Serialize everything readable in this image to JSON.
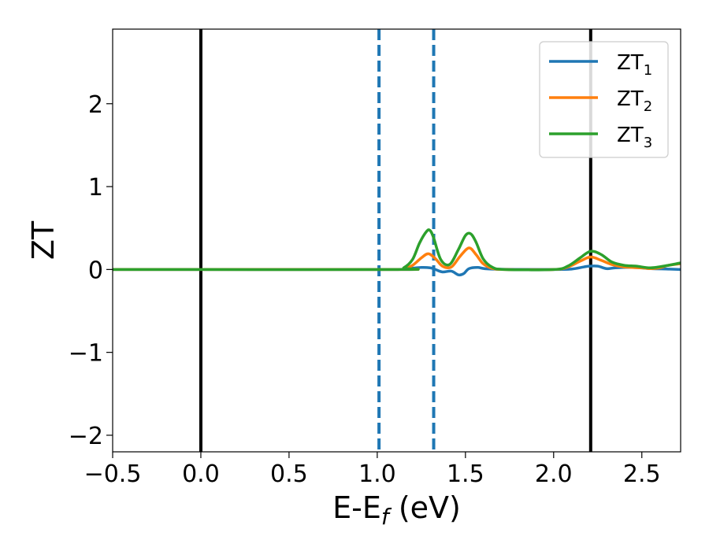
{
  "chart_data": {
    "type": "line",
    "xlabel": {
      "main": "E-E",
      "sub": "f",
      "unit": " (eV)"
    },
    "ylabel": "ZT",
    "xlim": [
      -0.5,
      2.72
    ],
    "ylim": [
      -2.2,
      2.9
    ],
    "xticks": [
      -0.5,
      0.0,
      0.5,
      1.0,
      1.5,
      2.0,
      2.5
    ],
    "xtick_labels": [
      "−0.5",
      "0.0",
      "0.5",
      "1.0",
      "1.5",
      "2.0",
      "2.5"
    ],
    "yticks": [
      -2,
      -1,
      0,
      1,
      2
    ],
    "ytick_labels": [
      "−2",
      "−1",
      "0",
      "1",
      "2"
    ],
    "grid": false,
    "legend_position": "top-right",
    "vlines": [
      {
        "x": 0.0,
        "style": "solid",
        "color": "#000000"
      },
      {
        "x": 2.21,
        "style": "solid",
        "color": "#000000"
      },
      {
        "x": 1.01,
        "style": "dashed",
        "color": "#1f77b4"
      },
      {
        "x": 1.32,
        "style": "dashed",
        "color": "#1f77b4"
      }
    ],
    "series": [
      {
        "name_main": "ZT",
        "name_sub": "1",
        "color": "#1f77b4",
        "x": [
          -0.5,
          1.1,
          1.15,
          1.2,
          1.25,
          1.3,
          1.33,
          1.37,
          1.42,
          1.46,
          1.49,
          1.52,
          1.57,
          1.65,
          2.0,
          2.1,
          2.17,
          2.2,
          2.25,
          2.3,
          2.35,
          2.45,
          2.55,
          2.65,
          2.72
        ],
        "y": [
          0.0,
          0.0,
          0.005,
          0.015,
          0.025,
          0.02,
          0.0,
          -0.03,
          -0.02,
          -0.065,
          -0.05,
          0.01,
          0.025,
          0.005,
          0.0,
          0.005,
          0.03,
          0.04,
          0.04,
          0.01,
          0.02,
          0.025,
          0.01,
          0.005,
          0.0
        ]
      },
      {
        "name_main": "ZT",
        "name_sub": "2",
        "color": "#ff7f0e",
        "x": [
          -0.5,
          1.1,
          1.15,
          1.2,
          1.25,
          1.29,
          1.33,
          1.37,
          1.42,
          1.47,
          1.52,
          1.56,
          1.6,
          1.65,
          1.72,
          2.0,
          2.08,
          2.15,
          2.21,
          2.27,
          2.33,
          2.4,
          2.5,
          2.55,
          2.6,
          2.65,
          2.72
        ],
        "y": [
          0.0,
          0.0,
          0.01,
          0.05,
          0.14,
          0.19,
          0.13,
          0.04,
          0.03,
          0.16,
          0.26,
          0.18,
          0.07,
          0.015,
          0.0,
          0.0,
          0.03,
          0.1,
          0.15,
          0.11,
          0.06,
          0.03,
          0.02,
          0.01,
          0.02,
          0.05,
          0.07
        ]
      },
      {
        "name_main": "ZT",
        "name_sub": "3",
        "color": "#2ca02c",
        "x": [
          -0.5,
          1.1,
          1.15,
          1.2,
          1.24,
          1.28,
          1.3,
          1.32,
          1.36,
          1.41,
          1.46,
          1.5,
          1.53,
          1.56,
          1.6,
          1.65,
          1.72,
          2.0,
          2.08,
          2.15,
          2.21,
          2.27,
          2.33,
          2.4,
          2.47,
          2.55,
          2.65,
          2.72
        ],
        "y": [
          0.0,
          0.0,
          0.02,
          0.12,
          0.32,
          0.46,
          0.47,
          0.38,
          0.12,
          0.06,
          0.24,
          0.41,
          0.43,
          0.33,
          0.13,
          0.03,
          0.0,
          0.0,
          0.04,
          0.14,
          0.22,
          0.18,
          0.09,
          0.05,
          0.04,
          0.02,
          0.05,
          0.08
        ]
      }
    ]
  }
}
